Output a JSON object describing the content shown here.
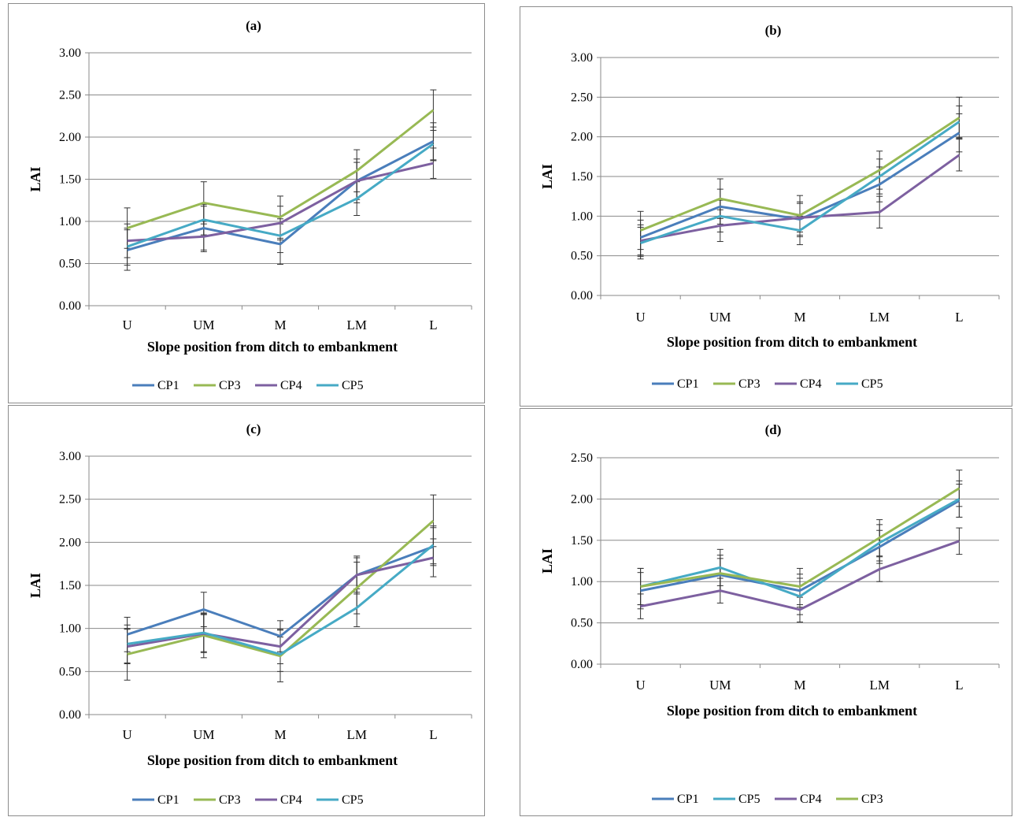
{
  "colors": {
    "CP1": "#4a7ebb",
    "CP3": "#98b954",
    "CP4": "#7d60a0",
    "CP5": "#46aac5"
  },
  "chart_data": [
    {
      "type": "line",
      "title": "(a)",
      "xlabel": "Slope position  from ditch to embankment",
      "ylabel": "LAI",
      "categories": [
        "U",
        "UM",
        "M",
        "LM",
        "L"
      ],
      "ylim": [
        0,
        3
      ],
      "yticks": [
        "0.00",
        "0.50",
        "1.00",
        "1.50",
        "2.00",
        "2.50",
        "3.00"
      ],
      "legend_position": "bottom",
      "series": [
        {
          "name": "CP1",
          "values": [
            0.66,
            0.92,
            0.73,
            1.48,
            1.95
          ],
          "errors": [
            0.24,
            0.26,
            0.24,
            0.26,
            0.22
          ]
        },
        {
          "name": "CP3",
          "values": [
            0.92,
            1.22,
            1.05,
            1.6,
            2.32
          ],
          "errors": [
            0.24,
            0.25,
            0.25,
            0.25,
            0.24
          ]
        },
        {
          "name": "CP4",
          "values": [
            0.77,
            0.82,
            0.98,
            1.48,
            1.69
          ],
          "errors": [
            0.2,
            0.18,
            0.2,
            0.22,
            0.18
          ]
        },
        {
          "name": "CP5",
          "values": [
            0.7,
            1.02,
            0.83,
            1.27,
            1.92
          ],
          "errors": [
            0.22,
            0.18,
            0.2,
            0.2,
            0.2
          ]
        }
      ]
    },
    {
      "type": "line",
      "title": "(b)",
      "xlabel": "Slope position from ditch to embankment",
      "ylabel": "LAI",
      "categories": [
        "U",
        "UM",
        "M",
        "LM",
        "L"
      ],
      "ylim": [
        0,
        3
      ],
      "yticks": [
        "0.00",
        "0.50",
        "1.00",
        "1.50",
        "2.00",
        "2.50",
        "3.00"
      ],
      "legend_position": "bottom",
      "series": [
        {
          "name": "CP1",
          "values": [
            0.73,
            1.12,
            0.96,
            1.4,
            2.05
          ],
          "errors": [
            0.22,
            0.22,
            0.22,
            0.22,
            0.24
          ]
        },
        {
          "name": "CP3",
          "values": [
            0.82,
            1.22,
            1.01,
            1.58,
            2.24
          ],
          "errors": [
            0.24,
            0.25,
            0.25,
            0.24,
            0.26
          ]
        },
        {
          "name": "CP4",
          "values": [
            0.69,
            0.88,
            0.98,
            1.05,
            1.77
          ],
          "errors": [
            0.2,
            0.2,
            0.18,
            0.2,
            0.2
          ]
        },
        {
          "name": "CP5",
          "values": [
            0.66,
            1.0,
            0.82,
            1.5,
            2.19
          ],
          "errors": [
            0.2,
            0.2,
            0.18,
            0.22,
            0.2
          ]
        }
      ]
    },
    {
      "type": "line",
      "title": "(c)",
      "xlabel": "Slope position from ditch to embankment",
      "ylabel": "LAI",
      "categories": [
        "U",
        "UM",
        "M",
        "LM",
        "L"
      ],
      "ylim": [
        0,
        3
      ],
      "yticks": [
        "0.00",
        "0.50",
        "1.00",
        "1.50",
        "2.00",
        "2.50",
        "3.00"
      ],
      "legend_position": "bottom",
      "series": [
        {
          "name": "CP1",
          "values": [
            0.93,
            1.22,
            0.91,
            1.62,
            1.95
          ],
          "errors": [
            0.2,
            0.2,
            0.18,
            0.2,
            0.22
          ]
        },
        {
          "name": "CP3",
          "values": [
            0.7,
            0.92,
            0.68,
            1.47,
            2.25
          ],
          "errors": [
            0.3,
            0.26,
            0.3,
            0.3,
            0.3
          ]
        },
        {
          "name": "CP4",
          "values": [
            0.79,
            0.94,
            0.79,
            1.62,
            1.82
          ],
          "errors": [
            0.2,
            0.22,
            0.2,
            0.22,
            0.22
          ]
        },
        {
          "name": "CP5",
          "values": [
            0.82,
            0.95,
            0.7,
            1.24,
            1.97
          ],
          "errors": [
            0.22,
            0.22,
            0.2,
            0.22,
            0.22
          ]
        }
      ]
    },
    {
      "type": "line",
      "title": "(d)",
      "xlabel": "Slope position from ditch to embankment",
      "ylabel": "LAI",
      "categories": [
        "U",
        "UM",
        "M",
        "LM",
        "L"
      ],
      "ylim": [
        0,
        2.5
      ],
      "yticks": [
        "0.00",
        "0.50",
        "1.00",
        "1.50",
        "2.00",
        "2.50"
      ],
      "legend_position": "bottom",
      "series": [
        {
          "name": "CP1",
          "values": [
            0.89,
            1.08,
            0.89,
            1.42,
            1.98
          ],
          "errors": [
            0.22,
            0.2,
            0.2,
            0.2,
            0.2
          ]
        },
        {
          "name": "CP5",
          "values": [
            0.94,
            1.17,
            0.82,
            1.47,
            2.0
          ],
          "errors": [
            0.22,
            0.22,
            0.22,
            0.22,
            0.22
          ]
        },
        {
          "name": "CP4",
          "values": [
            0.7,
            0.89,
            0.66,
            1.15,
            1.49
          ],
          "errors": [
            0.15,
            0.15,
            0.15,
            0.15,
            0.16
          ]
        },
        {
          "name": "CP3",
          "values": [
            0.94,
            1.1,
            0.94,
            1.53,
            2.13
          ],
          "errors": [
            0.22,
            0.22,
            0.22,
            0.22,
            0.22
          ]
        }
      ]
    }
  ]
}
